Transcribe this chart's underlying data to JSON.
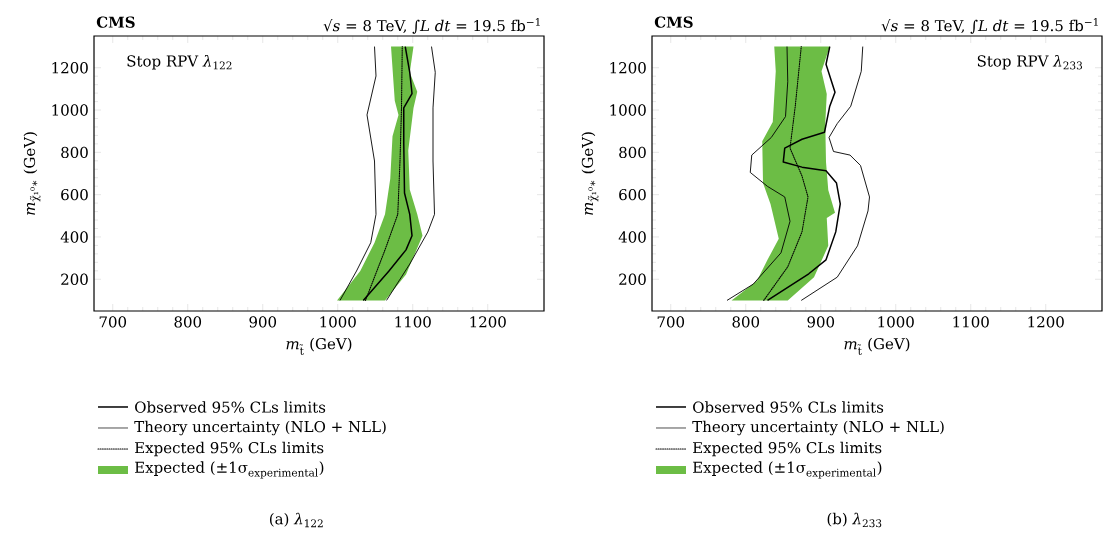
{
  "chart_data": [
    {
      "type": "line",
      "title": "CMS",
      "subtitle": "√*s* = 8 TeV, ∫*L dt* = 19.5 fb$^{−1}$",
      "xlabel": "*m*$_{t̃}$ (GeV)",
      "ylabel": "*m*$_{χ̃₁⁰∗}$ (GeV)",
      "annotations": [
        "Stop RPV *λ*$_{122}$",
        "(a)  *λ*$_{122}$"
      ],
      "xlim": [
        675,
        1275
      ],
      "ylim": [
        50,
        1350
      ],
      "xticks": [
        700,
        800,
        900,
        1000,
        1100,
        1200
      ],
      "yticks": [
        200,
        400,
        600,
        800,
        1000,
        1200
      ],
      "legend": "bottom",
      "grid": false,
      "marker": "none",
      "series": [
        {
          "name": "Observed 95% CLs limits",
          "line_style": "solid",
          "color": "#000000",
          "x": [
            1034,
            1068,
            1091,
            1099,
            1096,
            1089,
            1088,
            1088,
            1099,
            1096,
            1090
          ],
          "values": [
            100,
            238,
            339,
            406,
            507,
            608,
            843,
            1010,
            1078,
            1178,
            1300
          ]
        },
        {
          "name": "Theory uncertainty (NLO + NLL)",
          "line_style": "solid",
          "color": "#000000",
          "x": [
            1003,
            1025,
            1044,
            1051,
            1049,
            1039,
            1051,
            1049
          ],
          "values": [
            100,
            239,
            373,
            507,
            759,
            977,
            1161,
            1300
          ]
        },
        {
          "line_style": "solid",
          "color": "#000000",
          "x": [
            1065,
            1096,
            1120,
            1129,
            1127,
            1127,
            1130,
            1125
          ],
          "values": [
            100,
            272,
            423,
            507,
            759,
            1010,
            1178,
            1300
          ]
        },
        {
          "name": "Expected 95% CLs limits",
          "line_style": "dotted",
          "color": "#000000",
          "x": [
            1037,
            1063,
            1080,
            1083,
            1085,
            1086
          ],
          "values": [
            100,
            339,
            507,
            759,
            1010,
            1300
          ]
        },
        {
          "name": "\\text{Expected (±1σ}_{\\text{experimental}}\\text{)}",
          "type": "area",
          "color": "#6cbd45",
          "x": [
            999,
            1030,
            1049,
            1063,
            1070,
            1073,
            1081,
            1076,
            1071,
            1101,
            1096,
            1106,
            1101,
            1094,
            1096,
            1106,
            1113,
            1091,
            1063
          ],
          "values": [
            100,
            239,
            373,
            507,
            675,
            876,
            977,
            1044,
            1300,
            1300,
            1178,
            1086,
            1010,
            809,
            624,
            507,
            406,
            222,
            100
          ]
        }
      ]
    },
    {
      "type": "line",
      "title": "CMS",
      "subtitle": "√*s* = 8 TeV, ∫*L dt* = 19.5 fb$^{−1}$",
      "xlabel": "*m*$_{t̃}$ (GeV)",
      "ylabel": "*m*$_{χ̃₁⁰∗}$ (GeV)",
      "annotations": [
        "Stop RPV *λ*$_{233}$",
        "(b)  *λ*$_{233}$"
      ],
      "xlim": [
        675,
        1275
      ],
      "ylim": [
        50,
        1350
      ],
      "xticks": [
        700,
        800,
        900,
        1000,
        1100,
        1200
      ],
      "yticks": [
        200,
        400,
        600,
        800,
        1000,
        1200
      ],
      "legend": "bottom",
      "grid": false,
      "marker": "none",
      "series": [
        {
          "name": "Observed 95% CLs limits",
          "line_style": "solid",
          "color": "#000000",
          "x": [
            829,
            884,
            907,
            920,
            926,
            921,
            907,
            875,
            850,
            852,
            875,
            905,
            912,
            919,
            907,
            912
          ],
          "values": [
            100,
            226,
            292,
            424,
            556,
            655,
            713,
            730,
            754,
            820,
            862,
            895,
            1018,
            1084,
            1216,
            1300
          ]
        },
        {
          "name": "Theory uncertainty (NLO + NLL)",
          "line_style": "solid",
          "color": "#000000",
          "x": [
            775,
            810,
            847,
            859,
            852,
            829,
            806,
            808,
            834,
            853,
            856,
            855
          ],
          "values": [
            100,
            177,
            325,
            474,
            589,
            639,
            705,
            787,
            870,
            969,
            1134,
            1300
          ]
        },
        {
          "line_style": "solid",
          "color": "#000000",
          "x": [
            874,
            922,
            949,
            963,
            965,
            953,
            939,
            917,
            911,
            922,
            940,
            954,
            956
          ],
          "values": [
            100,
            210,
            358,
            523,
            589,
            738,
            787,
            804,
            870,
            936,
            1018,
            1183,
            1300
          ]
        },
        {
          "name": "Expected 95% CLs limits",
          "line_style": "dotted",
          "color": "#000000",
          "x": [
            824,
            856,
            875,
            883,
            875,
            859,
            866,
            874
          ],
          "values": [
            100,
            259,
            424,
            589,
            688,
            820,
            1018,
            1300
          ]
        },
        {
          "name": "\\text{Expected (±1σ}_{\\text{experimental}}\\text{)}",
          "type": "area",
          "color": "#6cbd45",
          "x": [
            781,
            815,
            829,
            844,
            833,
            823,
            822,
            836,
            840,
            838,
            912,
            901,
            908,
            906,
            907,
            910,
            919,
            908,
            910,
            891,
            856
          ],
          "values": [
            100,
            193,
            292,
            391,
            556,
            655,
            853,
            944,
            1183,
            1300,
            1300,
            1183,
            1076,
            936,
            754,
            622,
            515,
            490,
            358,
            210,
            100
          ]
        }
      ]
    }
  ]
}
